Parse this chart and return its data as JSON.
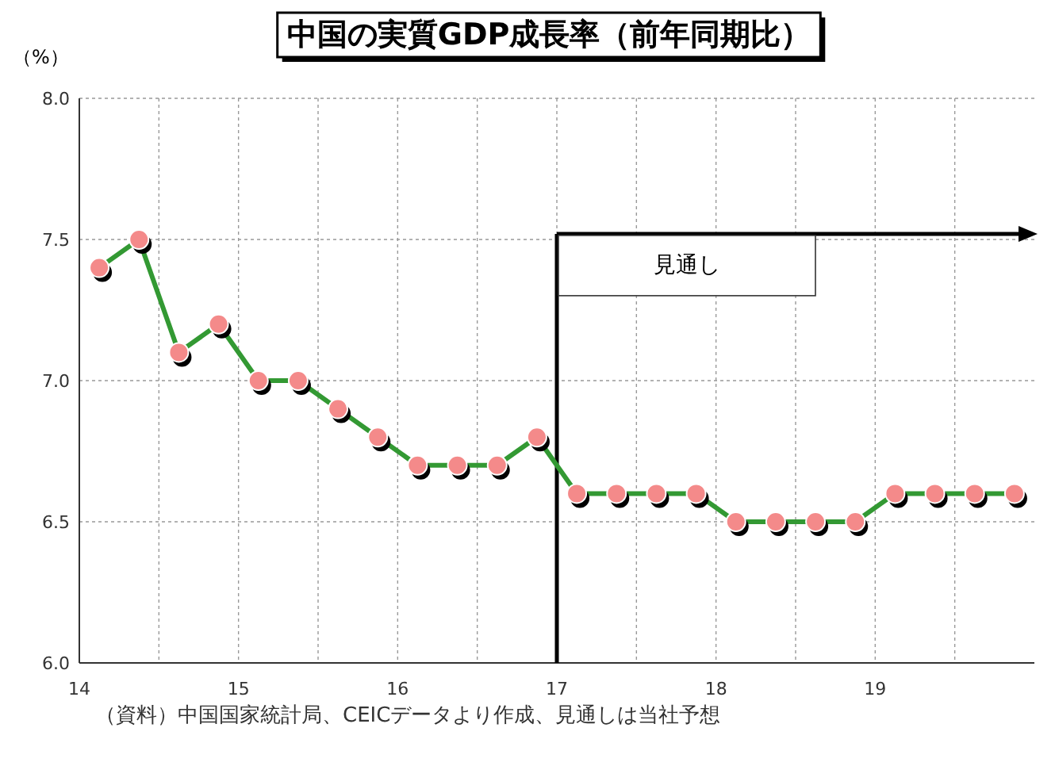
{
  "chart_data": {
    "type": "line",
    "title": "中国の実質GDP成長率（前年同期比）",
    "ylabel": "（%）",
    "x": [
      2014.125,
      2014.375,
      2014.625,
      2014.875,
      2015.125,
      2015.375,
      2015.625,
      2015.875,
      2016.125,
      2016.375,
      2016.625,
      2016.875,
      2017.125,
      2017.375,
      2017.625,
      2017.875,
      2018.125,
      2018.375,
      2018.625,
      2018.875,
      2019.125,
      2019.375,
      2019.625,
      2019.875
    ],
    "series": [
      {
        "color": "#339933",
        "values": [
          7.4,
          7.5,
          7.1,
          7.2,
          7.0,
          7.0,
          6.9,
          6.8,
          6.7,
          6.7,
          6.7,
          6.8,
          6.6,
          6.6,
          6.6,
          6.6,
          6.5,
          6.5,
          6.5,
          6.5,
          6.6,
          6.6,
          6.6,
          6.6
        ]
      }
    ],
    "marker": "circle",
    "grid": true,
    "xlim": [
      2014,
      2020
    ],
    "xticks": [
      {
        "value": 2014,
        "label": "14"
      },
      {
        "value": 2014.5,
        "label": null
      },
      {
        "value": 2015,
        "label": "15"
      },
      {
        "value": 2015.5,
        "label": null
      },
      {
        "value": 2016,
        "label": "16"
      },
      {
        "value": 2016.5,
        "label": null
      },
      {
        "value": 2017,
        "label": "17"
      },
      {
        "value": 2017.5,
        "label": null
      },
      {
        "value": 2018,
        "label": "18"
      },
      {
        "value": 2018.5,
        "label": null
      },
      {
        "value": 2019,
        "label": "19"
      },
      {
        "value": 2019.5,
        "label": null
      }
    ],
    "ylim": [
      6,
      8
    ],
    "yticks": [
      {
        "value": 6,
        "label": "6.0"
      },
      {
        "value": 6.5,
        "label": "6.5"
      },
      {
        "value": 7,
        "label": "7.0"
      },
      {
        "value": 7.5,
        "label": "7.5"
      },
      {
        "value": 8,
        "label": "8.0"
      }
    ],
    "ref_lines": [
      {
        "axis": "x",
        "value": 2017,
        "label": "見通し",
        "color": "#000000"
      }
    ],
    "annotations": [
      "（資料）中国国家統計局、CEICデータより作成、見通しは当社予想"
    ]
  }
}
